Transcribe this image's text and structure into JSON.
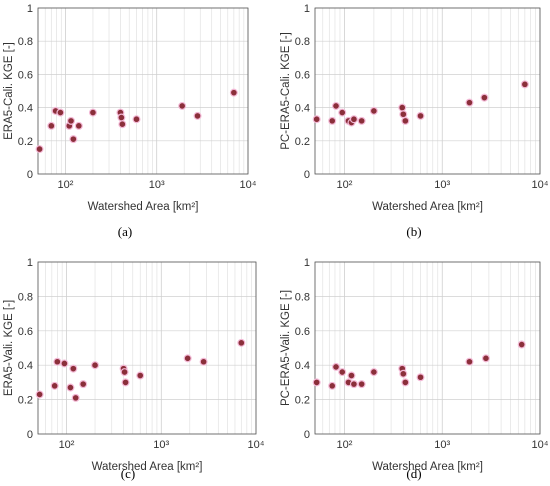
{
  "chart_data": [
    {
      "type": "scatter",
      "panel": "(a)",
      "xlabel": "Watershed Area [km²]",
      "ylabel": "ERA5-Cali. KGE [-]",
      "xscale": "log",
      "xlim": [
        50,
        10000
      ],
      "ylim": [
        0,
        1
      ],
      "xticks": [
        "10²",
        "10³",
        "10⁴"
      ],
      "yticks": [
        "0",
        "0.2",
        "0.4",
        "0.6",
        "0.8",
        "1"
      ],
      "grid": true,
      "marker_color": "#8b2f3a",
      "points": [
        {
          "x": 52,
          "y": 0.15
        },
        {
          "x": 70,
          "y": 0.29
        },
        {
          "x": 78,
          "y": 0.38
        },
        {
          "x": 88,
          "y": 0.37
        },
        {
          "x": 110,
          "y": 0.29
        },
        {
          "x": 115,
          "y": 0.32
        },
        {
          "x": 122,
          "y": 0.21
        },
        {
          "x": 140,
          "y": 0.29
        },
        {
          "x": 200,
          "y": 0.37
        },
        {
          "x": 400,
          "y": 0.37
        },
        {
          "x": 410,
          "y": 0.34
        },
        {
          "x": 420,
          "y": 0.3
        },
        {
          "x": 600,
          "y": 0.33
        },
        {
          "x": 1900,
          "y": 0.41
        },
        {
          "x": 2800,
          "y": 0.35
        },
        {
          "x": 7000,
          "y": 0.49
        }
      ]
    },
    {
      "type": "scatter",
      "panel": "(b)",
      "xlabel": "Watershed Area [km²]",
      "ylabel": "PC-ERA5-Cali. KGE [-]",
      "xscale": "log",
      "xlim": [
        50,
        10000
      ],
      "ylim": [
        0,
        1
      ],
      "xticks": [
        "10²",
        "10³",
        "10⁴"
      ],
      "yticks": [
        "0",
        "0.2",
        "0.4",
        "0.6",
        "0.8",
        "1"
      ],
      "grid": true,
      "marker_color": "#8b2f3a",
      "points": [
        {
          "x": 52,
          "y": 0.33
        },
        {
          "x": 75,
          "y": 0.32
        },
        {
          "x": 82,
          "y": 0.41
        },
        {
          "x": 95,
          "y": 0.37
        },
        {
          "x": 110,
          "y": 0.32
        },
        {
          "x": 118,
          "y": 0.31
        },
        {
          "x": 125,
          "y": 0.33
        },
        {
          "x": 150,
          "y": 0.32
        },
        {
          "x": 200,
          "y": 0.38
        },
        {
          "x": 390,
          "y": 0.4
        },
        {
          "x": 400,
          "y": 0.36
        },
        {
          "x": 420,
          "y": 0.32
        },
        {
          "x": 600,
          "y": 0.35
        },
        {
          "x": 1900,
          "y": 0.43
        },
        {
          "x": 2700,
          "y": 0.46
        },
        {
          "x": 7000,
          "y": 0.54
        }
      ]
    },
    {
      "type": "scatter",
      "panel": "(c)",
      "xlabel": "Watershed Area [km²]",
      "ylabel": "ERA5-Vali. KGE [-]",
      "xscale": "log",
      "xlim": [
        50,
        10000
      ],
      "ylim": [
        0,
        1
      ],
      "xticks": [
        "10²",
        "10³",
        "10⁴"
      ],
      "yticks": [
        "0",
        "0.2",
        "0.4",
        "0.6",
        "0.8",
        "1"
      ],
      "grid": true,
      "marker_color": "#8b2f3a",
      "points": [
        {
          "x": 52,
          "y": 0.23
        },
        {
          "x": 75,
          "y": 0.28
        },
        {
          "x": 80,
          "y": 0.42
        },
        {
          "x": 95,
          "y": 0.41
        },
        {
          "x": 110,
          "y": 0.27
        },
        {
          "x": 118,
          "y": 0.38
        },
        {
          "x": 125,
          "y": 0.21
        },
        {
          "x": 150,
          "y": 0.29
        },
        {
          "x": 200,
          "y": 0.4
        },
        {
          "x": 400,
          "y": 0.38
        },
        {
          "x": 410,
          "y": 0.36
        },
        {
          "x": 420,
          "y": 0.3
        },
        {
          "x": 600,
          "y": 0.34
        },
        {
          "x": 1900,
          "y": 0.44
        },
        {
          "x": 2800,
          "y": 0.42
        },
        {
          "x": 7000,
          "y": 0.53
        }
      ]
    },
    {
      "type": "scatter",
      "panel": "(d)",
      "xlabel": "Watershed Area [km²]",
      "ylabel": "PC-ERA5-Vali. KGE [-]",
      "xscale": "log",
      "xlim": [
        50,
        10000
      ],
      "ylim": [
        0,
        1
      ],
      "xticks": [
        "10²",
        "10³",
        "10⁴"
      ],
      "yticks": [
        "0",
        "0.2",
        "0.4",
        "0.6",
        "0.8",
        "1"
      ],
      "grid": true,
      "marker_color": "#8b2f3a",
      "points": [
        {
          "x": 52,
          "y": 0.3
        },
        {
          "x": 75,
          "y": 0.28
        },
        {
          "x": 82,
          "y": 0.39
        },
        {
          "x": 95,
          "y": 0.36
        },
        {
          "x": 110,
          "y": 0.3
        },
        {
          "x": 118,
          "y": 0.34
        },
        {
          "x": 125,
          "y": 0.29
        },
        {
          "x": 150,
          "y": 0.29
        },
        {
          "x": 200,
          "y": 0.36
        },
        {
          "x": 390,
          "y": 0.38
        },
        {
          "x": 400,
          "y": 0.35
        },
        {
          "x": 420,
          "y": 0.3
        },
        {
          "x": 600,
          "y": 0.33
        },
        {
          "x": 1900,
          "y": 0.42
        },
        {
          "x": 2800,
          "y": 0.44
        },
        {
          "x": 6500,
          "y": 0.52
        }
      ]
    }
  ]
}
